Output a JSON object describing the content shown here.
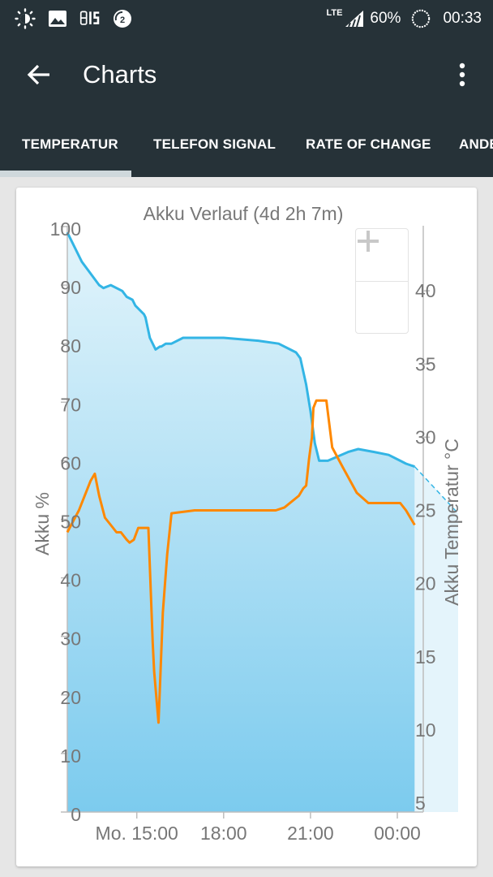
{
  "statusbar": {
    "network": "LTE",
    "battery": "60%",
    "time": "00:33",
    "icons": [
      "brightness-icon",
      "image-icon",
      "clock-widget-icon",
      "notification-count-icon"
    ],
    "notification_count": "2"
  },
  "appbar": {
    "title": "Charts"
  },
  "tabs": [
    {
      "label": "TEMPERATUR",
      "selected": true
    },
    {
      "label": "TELEFON SIGNAL",
      "selected": false
    },
    {
      "label": "RATE OF CHANGE",
      "selected": false
    },
    {
      "label": "ANDE",
      "selected": false
    }
  ],
  "zoom": {
    "in_label": "+",
    "out_label": "−"
  },
  "colors": {
    "battery_line": "#33b5e5",
    "temperature_line": "#ff8800",
    "fill_top": "#e2f4fb",
    "fill_bottom": "#7ccbee",
    "projection_fill": "#e4f4fb",
    "appbar": "#263238"
  },
  "chart_data": {
    "type": "line",
    "title": "Akku Verlauf (4d 2h 7m)",
    "ylabel": "Akku %",
    "y2label": "Akku Temperatur °C",
    "ylim": [
      0,
      100
    ],
    "y2lim": [
      5,
      45
    ],
    "xlim": [
      12.6,
      26.1
    ],
    "yticks": [
      "0",
      "10",
      "20",
      "30",
      "40",
      "50",
      "60",
      "70",
      "80",
      "90",
      "100"
    ],
    "y2ticks": [
      "5",
      "10",
      "15",
      "20",
      "25",
      "30",
      "35",
      "40"
    ],
    "xticks": [
      {
        "x": 15,
        "label": "Mo. 15:00"
      },
      {
        "x": 18,
        "label": "18:00"
      },
      {
        "x": 21,
        "label": "21:00"
      },
      {
        "x": 24,
        "label": "00:00"
      }
    ],
    "series": [
      {
        "axis": "left",
        "x": [
          12.6,
          13.1,
          13.7,
          13.85,
          14.1,
          14.5,
          14.65,
          14.85,
          14.95,
          15.25,
          15.3,
          15.45,
          15.65,
          15.8,
          15.85,
          16.0,
          16.2,
          16.6,
          17.3,
          18.0,
          19.2,
          19.9,
          20.3,
          20.5,
          20.65,
          20.85,
          21.0,
          21.15,
          21.3,
          21.6,
          22.3,
          22.65,
          23.2,
          23.7,
          24.1,
          24.3,
          24.6
        ],
        "y": [
          99,
          94,
          90,
          89.5,
          90,
          89,
          88,
          87.5,
          86.5,
          85,
          84.5,
          81,
          79,
          79.5,
          79.5,
          80,
          80,
          81,
          81,
          81,
          80.5,
          80,
          79,
          78.5,
          77.5,
          73,
          68.5,
          63,
          60,
          60,
          61.5,
          62,
          61.5,
          61,
          60,
          59.5,
          59
        ],
        "projection": {
          "x": [
            24.6,
            26.1
          ],
          "y": [
            59,
            51
          ]
        }
      },
      {
        "axis": "right",
        "x": [
          12.6,
          13.0,
          13.4,
          13.55,
          13.7,
          13.9,
          14.1,
          14.3,
          14.45,
          14.65,
          14.75,
          14.9,
          15.05,
          15.2,
          15.4,
          15.55,
          15.6,
          15.75,
          15.8,
          15.9,
          16.05,
          16.2,
          17.0,
          18.0,
          19.0,
          19.8,
          20.1,
          20.6,
          20.75,
          20.85,
          20.95,
          21.05,
          21.1,
          21.2,
          21.35,
          21.55,
          21.75,
          22.1,
          22.6,
          23.0,
          23.6,
          24.1,
          24.3,
          24.6
        ],
        "y": [
          23.5,
          25,
          27,
          27.5,
          26,
          24.5,
          24,
          23.5,
          23.5,
          23,
          22.8,
          23,
          23.8,
          23.8,
          23.8,
          16,
          14,
          10.5,
          13,
          18,
          22,
          24.8,
          25,
          25,
          25,
          25,
          25.2,
          26,
          26.5,
          26.7,
          28.5,
          30,
          32,
          32.5,
          32.5,
          32.5,
          29.3,
          28,
          26.2,
          25.5,
          25.5,
          25.5,
          25,
          24
        ]
      }
    ]
  }
}
